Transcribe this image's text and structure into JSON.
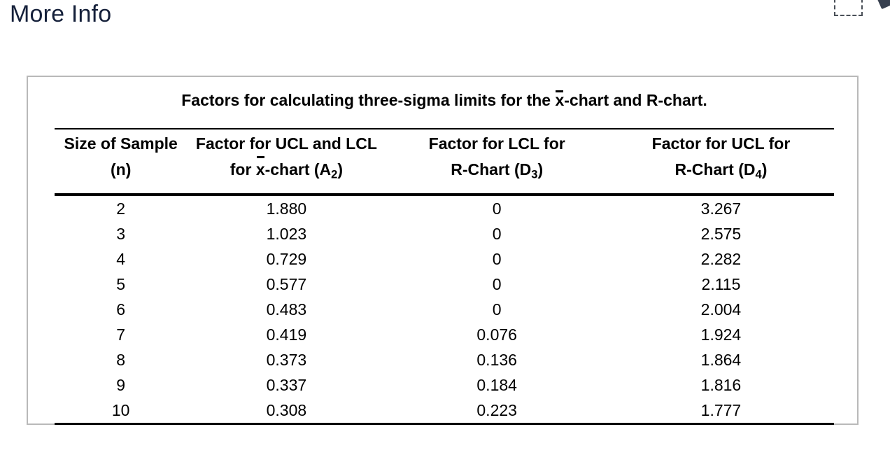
{
  "window": {
    "title": "More Info"
  },
  "colors": {
    "title_text": "#15203A",
    "panel_border": "#B9B9B9",
    "table_rules": "#000000",
    "body_text": "#000000",
    "dashed_outline": "#4A5058",
    "corner_icon": "#37404F"
  },
  "icons": {
    "corner": "pull-out-arrow-icon",
    "focus_outline": "dashed-focus-box"
  },
  "table": {
    "caption": {
      "prefix": "Factors for calculating three-sigma limits for the ",
      "xbar": "x",
      "suffix": "-chart and R-chart."
    },
    "headers": [
      {
        "line1": "Size of Sample",
        "line2": "(n)"
      },
      {
        "line1": "Factor for UCL and LCL",
        "line2_pre": "for ",
        "xbar": "x",
        "line2_mid": "-chart (A",
        "sub": "2",
        "line2_post": ")"
      },
      {
        "line1": "Factor for LCL for",
        "line2_pre": "R-Chart (D",
        "sub": "3",
        "line2_post": ")"
      },
      {
        "line1": "Factor for UCL for",
        "line2_pre": "R-Chart (D",
        "sub": "4",
        "line2_post": ")"
      }
    ],
    "rows": [
      {
        "n": "2",
        "a2": "1.880",
        "d3": "0",
        "d4": "3.267"
      },
      {
        "n": "3",
        "a2": "1.023",
        "d3": "0",
        "d4": "2.575"
      },
      {
        "n": "4",
        "a2": "0.729",
        "d3": "0",
        "d4": "2.282"
      },
      {
        "n": "5",
        "a2": "0.577",
        "d3": "0",
        "d4": "2.115"
      },
      {
        "n": "6",
        "a2": "0.483",
        "d3": "0",
        "d4": "2.004"
      },
      {
        "n": "7",
        "a2": "0.419",
        "d3": "0.076",
        "d4": "1.924"
      },
      {
        "n": "8",
        "a2": "0.373",
        "d3": "0.136",
        "d4": "1.864"
      },
      {
        "n": "9",
        "a2": "0.337",
        "d3": "0.184",
        "d4": "1.816"
      },
      {
        "n": "10",
        "a2": "0.308",
        "d3": "0.223",
        "d4": "1.777"
      }
    ]
  }
}
